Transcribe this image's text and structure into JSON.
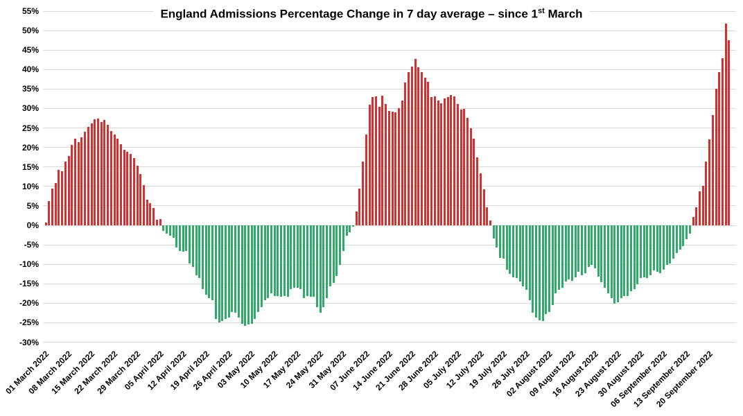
{
  "title": {
    "text": "England Admissions Percentage Change in 7 day average – since 1",
    "superscript": "st",
    "tail": " March"
  },
  "chart_data": {
    "type": "bar",
    "title": "England Admissions Percentage Change in 7 day average – since 1st March",
    "xlabel": "",
    "ylabel": "",
    "x_frequency": "daily",
    "x_start": "01 March 2022",
    "x_end": "26 September 2022",
    "ylim": [
      -30,
      55
    ],
    "y_tick_step": 5,
    "y_tick_labels": [
      "55%",
      "50%",
      "45%",
      "40%",
      "35%",
      "30%",
      "25%",
      "20%",
      "15%",
      "10%",
      "5%",
      "0%",
      "-5%",
      "-10%",
      "-15%",
      "-20%",
      "-25%",
      "-30%"
    ],
    "x_tick_labels": [
      "01 March 2022",
      "08 March 2022",
      "15 March 2022",
      "22 March 2022",
      "29 March 2022",
      "05 April 2022",
      "12 April 2022",
      "19 April 2022",
      "26 April 2022",
      "03 May 2022",
      "10 May 2022",
      "17 May 2022",
      "24 May 2022",
      "31 May 2022",
      "07 June 2022",
      "14 June 2022",
      "21 June 2022",
      "28 June 2022",
      "05 July 2022",
      "12 July 2022",
      "19 July 2022",
      "26 July 2022",
      "02 August 2022",
      "09 August 2022",
      "16 August 2022",
      "23 August 2022",
      "30 August 2022",
      "06 September 2022",
      "13 September 2022",
      "20 September 2022"
    ],
    "x_tick_every_n_bars": 7,
    "grid": true,
    "legend": false,
    "positive_color": "#d43030",
    "negative_color": "#2faa68",
    "gridline_color": "#d9d9d9",
    "values": [
      0.8,
      6.2,
      9.4,
      10.8,
      14.2,
      13.9,
      16.3,
      17.9,
      20.7,
      22.2,
      21.4,
      22.6,
      24.1,
      25.3,
      26.2,
      27.2,
      27.5,
      26.6,
      27.0,
      25.9,
      24.3,
      23.4,
      22.3,
      20.9,
      19.4,
      18.9,
      18.4,
      17.2,
      15.4,
      13.2,
      10.4,
      6.6,
      5.7,
      4.4,
      1.5,
      1.7,
      -1.5,
      -2.2,
      -2.6,
      -3.2,
      -5.7,
      -6.6,
      -6.8,
      -6.6,
      -9.8,
      -10.7,
      -12.8,
      -13.6,
      -16.3,
      -17.8,
      -18.7,
      -19.2,
      -24.0,
      -24.9,
      -24.6,
      -24.0,
      -23.7,
      -22.2,
      -22.5,
      -23.7,
      -25.2,
      -25.8,
      -25.5,
      -25.2,
      -24.0,
      -22.2,
      -21.0,
      -19.2,
      -18.7,
      -17.4,
      -18.1,
      -18.1,
      -18.4,
      -18.1,
      -18.4,
      -16.3,
      -16.0,
      -16.0,
      -16.3,
      -18.7,
      -18.1,
      -18.4,
      -18.4,
      -21.0,
      -22.5,
      -21.0,
      -18.7,
      -15.7,
      -14.8,
      -13.0,
      -10.1,
      -6.5,
      -2.7,
      -1.8,
      -0.4,
      3.6,
      9.5,
      16.4,
      23.4,
      31.0,
      33.0,
      33.1,
      30.5,
      33.3,
      31.2,
      29.4,
      29.2,
      29.0,
      30.1,
      32.1,
      36.6,
      39.4,
      40.7,
      42.7,
      40.6,
      39.4,
      37.9,
      36.8,
      32.9,
      33.2,
      32.0,
      31.3,
      32.6,
      33.0,
      33.5,
      33.2,
      31.1,
      29.7,
      30.0,
      27.6,
      24.9,
      22.2,
      17.5,
      13.3,
      9.2,
      4.7,
      1.3,
      -3.3,
      -5.6,
      -8.3,
      -8.6,
      -11.3,
      -12.5,
      -13.3,
      -13.6,
      -14.5,
      -15.7,
      -16.6,
      -19.3,
      -22.5,
      -23.7,
      -24.3,
      -24.6,
      -22.8,
      -22.2,
      -20.5,
      -17.5,
      -16.6,
      -16.0,
      -14.5,
      -13.9,
      -14.2,
      -13.3,
      -11.9,
      -12.8,
      -12.2,
      -10.7,
      -10.1,
      -11.0,
      -13.2,
      -14.6,
      -16.0,
      -17.5,
      -18.7,
      -20.1,
      -19.8,
      -18.7,
      -18.1,
      -18.1,
      -16.9,
      -16.3,
      -15.1,
      -13.6,
      -13.3,
      -13.6,
      -12.8,
      -11.6,
      -11.9,
      -12.2,
      -11.3,
      -10.1,
      -9.8,
      -8.6,
      -7.1,
      -6.2,
      -5.3,
      -3.6,
      -2.1,
      2.2,
      4.6,
      8.7,
      10.1,
      16.4,
      22.1,
      28.3,
      35.0,
      39.3,
      43.0,
      51.9,
      47.5
    ]
  }
}
